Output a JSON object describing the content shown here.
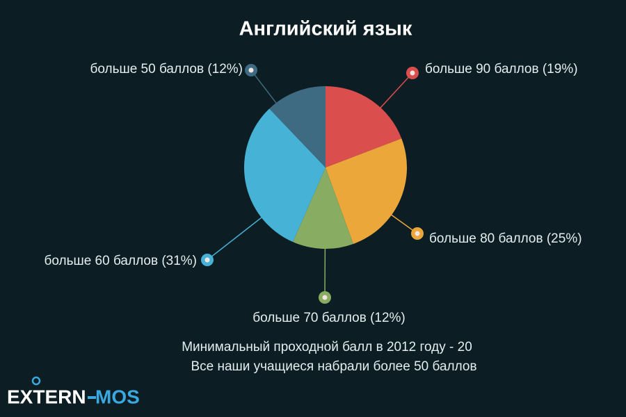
{
  "chart_data": {
    "type": "pie",
    "title": "Английский язык",
    "categories": [
      "больше 90 баллов",
      "больше 80 баллов",
      "больше 70 баллов",
      "больше 60 баллов",
      "больше 50 баллов"
    ],
    "values": [
      19,
      25,
      12,
      31,
      12
    ],
    "value_labels": [
      "(19%)",
      "(25%)",
      "(12%)",
      "(31%)",
      "(12%)"
    ],
    "colors": [
      "#db4e4e",
      "#eca73a",
      "#89ac63",
      "#46b3d6",
      "#3f6b82"
    ],
    "notes": [
      "Минимальный проходной балл в 2012 году - 20",
      "Все наши учащиеся набрали более 50 баллов"
    ],
    "logo": [
      "EXTERN",
      "MOS"
    ]
  }
}
